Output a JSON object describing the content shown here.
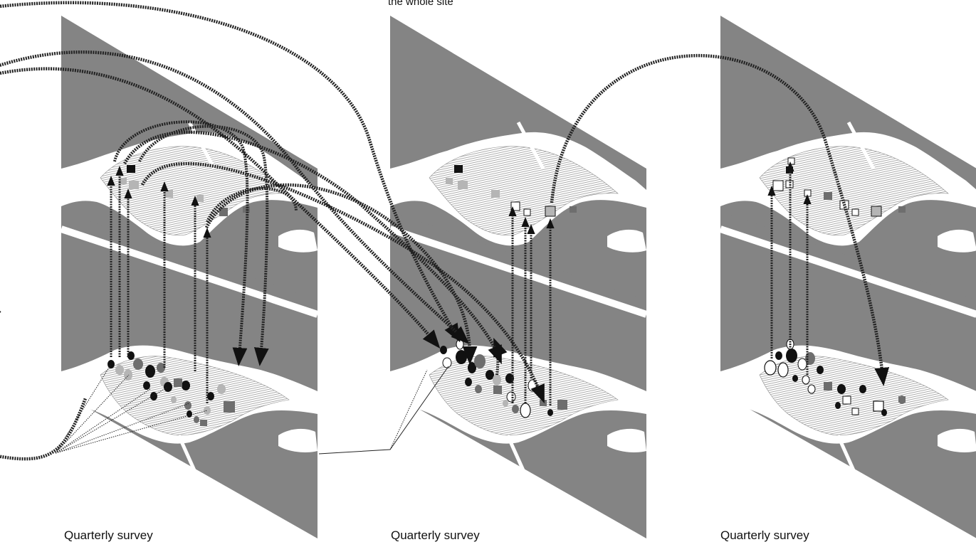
{
  "top_caption": "the whole site",
  "panels": [
    {
      "label": "Quarterly survey"
    },
    {
      "label": "Quarterly survey"
    },
    {
      "label": "Quarterly survey"
    }
  ],
  "colors": {
    "plane": "#848484",
    "land": "#ffffff",
    "hatch": "#9a9a9a",
    "dark_fill": "#111111",
    "mid_fill": "#6e6e6e",
    "light_fill": "#b5b5b5",
    "arrow": "#222222"
  }
}
